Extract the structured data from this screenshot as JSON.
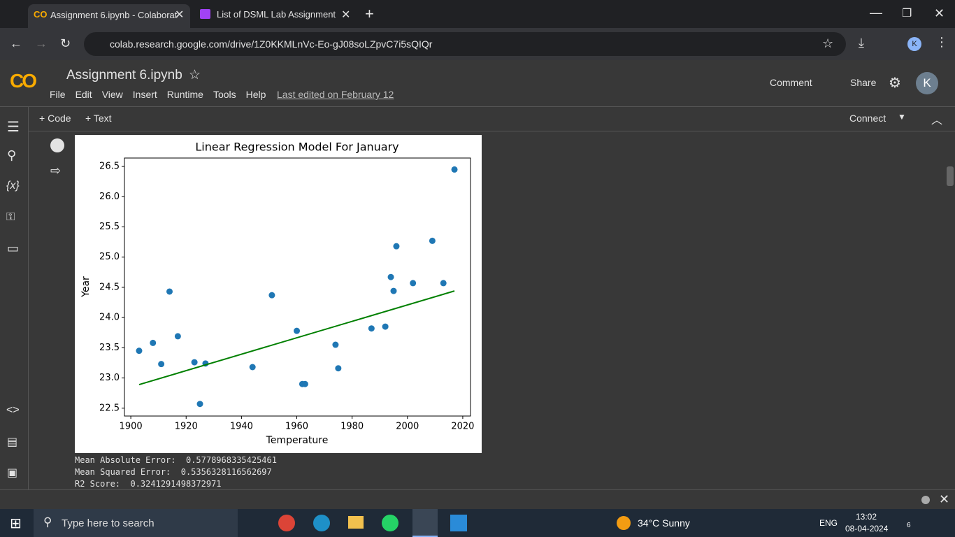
{
  "browser": {
    "tabs": [
      {
        "title": "Assignment 6.ipynb - Colaborat"
      },
      {
        "title": "List of DSML Lab Assignment"
      }
    ],
    "url": "colab.research.google.com/drive/1Z0KKMLnVc-Eo-gJ08soLZpvC7i5sQIQr",
    "profile": "K"
  },
  "notebook": {
    "title": "Assignment 6.ipynb",
    "menu": [
      "File",
      "Edit",
      "View",
      "Insert",
      "Runtime",
      "Tools",
      "Help"
    ],
    "last_edited": "Last edited on February 12",
    "comment": "Comment",
    "share": "Share",
    "avatar": "K",
    "add_code": "Code",
    "add_text": "Text",
    "connect": "Connect"
  },
  "output": [
    "Mean Absolute Error:  0.5778968335425461",
    "Mean Squared Error:  0.5356328116562697",
    "R2 Score:  0.3241291498372971"
  ],
  "taskbar": {
    "search": "Type here to search",
    "weather": "34°C  Sunny",
    "language": "ENG",
    "time": "13:02",
    "date": "08-04-2024",
    "notifications": "6"
  },
  "chart_data": {
    "type": "scatter",
    "title": "Linear Regression Model For January",
    "xlabel": "Temperature",
    "ylabel": "Year",
    "xlim": [
      1897.7,
      2022.8
    ],
    "ylim": [
      22.37,
      26.64
    ],
    "xticks": [
      1900,
      1920,
      1940,
      1960,
      1980,
      2000,
      2020
    ],
    "yticks": [
      22.5,
      {
        "value": 23,
        "label": "23.0"
      },
      23.5,
      {
        "value": 24,
        "label": "24.0"
      },
      24.5,
      {
        "value": 25,
        "label": "25.0"
      },
      25.5,
      {
        "value": 26,
        "label": "26.0"
      },
      26.5
    ],
    "series": [
      {
        "type": "scatter",
        "color": "#1f77b4",
        "x": [
          1903,
          1908,
          1911,
          1914,
          1917,
          1923,
          1925,
          1927,
          1944,
          1951,
          1960,
          1962,
          1963,
          1974,
          1975,
          1987,
          1992,
          1994,
          1995,
          1996,
          2002,
          2009,
          2013,
          2017
        ],
        "values": [
          23.45,
          23.58,
          23.23,
          24.43,
          23.69,
          23.26,
          22.57,
          23.24,
          23.18,
          24.37,
          23.78,
          22.9,
          22.9,
          23.55,
          23.16,
          23.82,
          23.85,
          24.67,
          24.44,
          25.18,
          24.57,
          25.27,
          24.57,
          26.45
        ]
      },
      {
        "type": "line",
        "color": "#008000",
        "x": [
          1903,
          2017
        ],
        "values": [
          22.89,
          24.44
        ]
      }
    ]
  }
}
